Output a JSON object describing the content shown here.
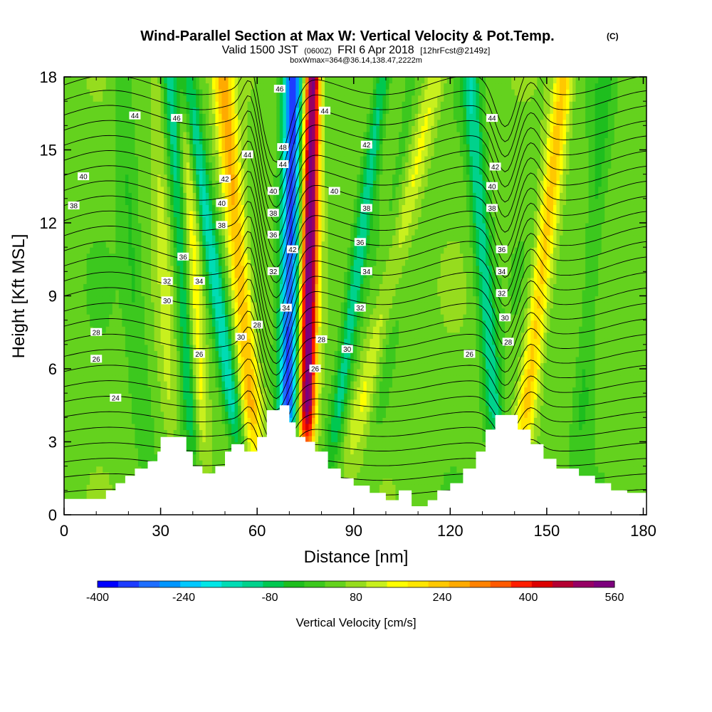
{
  "header": {
    "title_main": "Wind-Parallel Section at Max W: Vertical Velocity & Pot.Temp.",
    "copyright": "(C)",
    "valid_prefix": "Valid 1500 JST",
    "zulu": "(0600Z)",
    "valid_date": "FRI 6 Apr 2018",
    "forecast": "[12hrFcst@2149z]",
    "box_info": "boxWmax=364@36.14,138.47,2222m"
  },
  "chart_data": {
    "type": "heatmap",
    "xlabel": "Distance [nm]",
    "ylabel": "Height [Kft MSL]",
    "xlim": [
      0,
      181
    ],
    "ylim": [
      0,
      18
    ],
    "x_ticks": [
      0,
      30,
      60,
      90,
      120,
      150,
      180
    ],
    "y_ticks": [
      0,
      3,
      6,
      9,
      12,
      15,
      18
    ],
    "colorbar": {
      "label": "Vertical Velocity [cm/s]",
      "min": -400,
      "max": 560,
      "step": 40,
      "tick_values": [
        -400,
        -240,
        -80,
        80,
        240,
        400,
        560
      ],
      "colors": [
        "#0000ff",
        "#1e3cff",
        "#1e6eff",
        "#0096ff",
        "#00c8ff",
        "#00e6e6",
        "#00dcb4",
        "#00d28c",
        "#00c850",
        "#1ebe1e",
        "#3cc81e",
        "#64d21e",
        "#96dc1e",
        "#c8f01e",
        "#ffff00",
        "#ffe600",
        "#ffc800",
        "#ffaa00",
        "#ff8200",
        "#ff5a00",
        "#ff1e00",
        "#dc0000",
        "#b40032",
        "#960064",
        "#7d007d"
      ]
    },
    "terrain_kft": [
      [
        0,
        0.65
      ],
      [
        10,
        0.65
      ],
      [
        13,
        1.0
      ],
      [
        16,
        1.3
      ],
      [
        19,
        1.6
      ],
      [
        22,
        1.9
      ],
      [
        26,
        2.2
      ],
      [
        29,
        2.6
      ],
      [
        30,
        3.2
      ],
      [
        35,
        3.2
      ],
      [
        38,
        2.6
      ],
      [
        40,
        2.0
      ],
      [
        43,
        1.7
      ],
      [
        47,
        2.0
      ],
      [
        50,
        2.6
      ],
      [
        52,
        2.9
      ],
      [
        56,
        2.6
      ],
      [
        60,
        3.2
      ],
      [
        63,
        4.3
      ],
      [
        67,
        4.5
      ],
      [
        70,
        3.8
      ],
      [
        72,
        3.2
      ],
      [
        75,
        3.0
      ],
      [
        78,
        2.6
      ],
      [
        82,
        1.9
      ],
      [
        86,
        1.5
      ],
      [
        90,
        1.2
      ],
      [
        95,
        0.9
      ],
      [
        100,
        0.6
      ],
      [
        104,
        1.0
      ],
      [
        108,
        0.35
      ],
      [
        110,
        0.35
      ],
      [
        113,
        0.6
      ],
      [
        116,
        1.0
      ],
      [
        120,
        1.3
      ],
      [
        124,
        1.9
      ],
      [
        128,
        2.6
      ],
      [
        131,
        3.5
      ],
      [
        134,
        4.1
      ],
      [
        138,
        4.1
      ],
      [
        141,
        3.5
      ],
      [
        145,
        2.9
      ],
      [
        149,
        2.3
      ],
      [
        153,
        1.9
      ],
      [
        160,
        1.6
      ],
      [
        165,
        1.3
      ],
      [
        170,
        1.0
      ],
      [
        175,
        0.9
      ],
      [
        181,
        0.9
      ]
    ],
    "updrafts": [
      {
        "x0": 75,
        "slope": 0.12,
        "width": 2.6,
        "amp": 540
      },
      {
        "x0": 69,
        "slope": 0.12,
        "width": 3.0,
        "amp": -400
      },
      {
        "x0": 61,
        "slope": -0.65,
        "width": 3.2,
        "amp": 230
      },
      {
        "x0": 57,
        "slope": -1.05,
        "width": 2.6,
        "amp": -200
      },
      {
        "x0": 44,
        "slope": -0.35,
        "width": 2.4,
        "amp": 110
      },
      {
        "x0": 41,
        "slope": -0.45,
        "width": 2.2,
        "amp": -150
      },
      {
        "x0": 85,
        "slope": 1.7,
        "width": 3.4,
        "amp": 110
      },
      {
        "x0": 81,
        "slope": 1.0,
        "width": 2.4,
        "amp": -160
      },
      {
        "x0": 95,
        "slope": 0.7,
        "width": 3.0,
        "amp": -40
      },
      {
        "x0": 140,
        "slope": 0.85,
        "width": 3.0,
        "amp": 200
      },
      {
        "x0": 136,
        "slope": -0.55,
        "width": 2.8,
        "amp": -170
      },
      {
        "x0": 159,
        "slope": 0.5,
        "width": 3.0,
        "amp": -70
      },
      {
        "x0": 26,
        "slope": -0.45,
        "width": 3.0,
        "amp": -60
      },
      {
        "x0": 34,
        "slope": -0.3,
        "width": 2.5,
        "amp": 60
      }
    ],
    "theta_levels": [
      22,
      23,
      24,
      25,
      26,
      27,
      28,
      29,
      30,
      31,
      32,
      33,
      34,
      35,
      36,
      37,
      38,
      39,
      40,
      41,
      42,
      43,
      44,
      45,
      46,
      47,
      48,
      49,
      50
    ],
    "contour_labels": [
      {
        "text": "44",
        "x": 22,
        "y": 16.4
      },
      {
        "text": "46",
        "x": 35,
        "y": 16.3
      },
      {
        "text": "40",
        "x": 6,
        "y": 13.9
      },
      {
        "text": "38",
        "x": 3,
        "y": 12.7
      },
      {
        "text": "42",
        "x": 50,
        "y": 13.8
      },
      {
        "text": "40",
        "x": 49,
        "y": 12.8
      },
      {
        "text": "38",
        "x": 49,
        "y": 11.9
      },
      {
        "text": "36",
        "x": 37,
        "y": 10.6
      },
      {
        "text": "34",
        "x": 42,
        "y": 9.6
      },
      {
        "text": "32",
        "x": 32,
        "y": 9.6
      },
      {
        "text": "30",
        "x": 32,
        "y": 8.8
      },
      {
        "text": "28",
        "x": 10,
        "y": 7.5
      },
      {
        "text": "26",
        "x": 10,
        "y": 6.4
      },
      {
        "text": "26",
        "x": 42,
        "y": 6.6
      },
      {
        "text": "24",
        "x": 16,
        "y": 4.8
      },
      {
        "text": "30",
        "x": 55,
        "y": 7.3
      },
      {
        "text": "28",
        "x": 60,
        "y": 7.8
      },
      {
        "text": "44",
        "x": 57,
        "y": 14.8
      },
      {
        "text": "32",
        "x": 65,
        "y": 10.0
      },
      {
        "text": "46",
        "x": 67,
        "y": 17.5
      },
      {
        "text": "48",
        "x": 68,
        "y": 15.1
      },
      {
        "text": "44",
        "x": 68,
        "y": 14.4
      },
      {
        "text": "40",
        "x": 65,
        "y": 13.3
      },
      {
        "text": "38",
        "x": 65,
        "y": 12.4
      },
      {
        "text": "36",
        "x": 65,
        "y": 11.5
      },
      {
        "text": "42",
        "x": 71,
        "y": 10.9
      },
      {
        "text": "34",
        "x": 69,
        "y": 8.5
      },
      {
        "text": "44",
        "x": 81,
        "y": 16.6
      },
      {
        "text": "42",
        "x": 94,
        "y": 15.2
      },
      {
        "text": "40",
        "x": 84,
        "y": 13.3
      },
      {
        "text": "38",
        "x": 94,
        "y": 12.6
      },
      {
        "text": "36",
        "x": 92,
        "y": 11.2
      },
      {
        "text": "34",
        "x": 94,
        "y": 10.0
      },
      {
        "text": "32",
        "x": 92,
        "y": 8.5
      },
      {
        "text": "28",
        "x": 80,
        "y": 7.2
      },
      {
        "text": "30",
        "x": 88,
        "y": 6.8
      },
      {
        "text": "26",
        "x": 78,
        "y": 6.0
      },
      {
        "text": "26",
        "x": 126,
        "y": 6.6
      },
      {
        "text": "44",
        "x": 133,
        "y": 16.3
      },
      {
        "text": "42",
        "x": 134,
        "y": 14.3
      },
      {
        "text": "40",
        "x": 133,
        "y": 13.5
      },
      {
        "text": "38",
        "x": 133,
        "y": 12.6
      },
      {
        "text": "36",
        "x": 136,
        "y": 10.9
      },
      {
        "text": "34",
        "x": 136,
        "y": 10.0
      },
      {
        "text": "32",
        "x": 136,
        "y": 9.1
      },
      {
        "text": "30",
        "x": 137,
        "y": 8.1
      },
      {
        "text": "28",
        "x": 138,
        "y": 7.1
      }
    ]
  }
}
